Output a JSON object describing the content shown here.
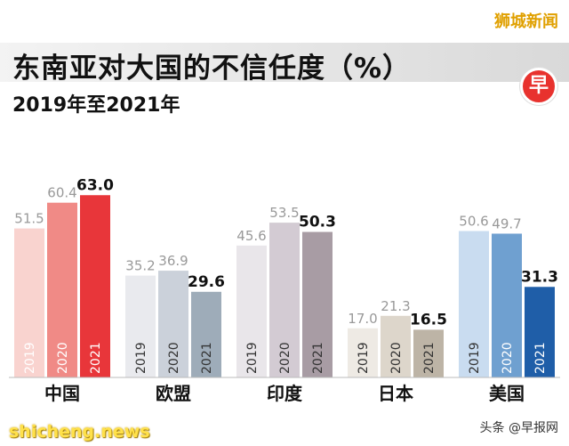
{
  "brand": "狮城新闻",
  "logo_char": "早",
  "footer_left": "shicheng.news",
  "footer_right": "头条 @早报网",
  "chart_data": {
    "type": "bar",
    "title": "东南亚对大国的不信任度（%）",
    "subtitle": "2019年至2021年",
    "xlabel": "",
    "ylabel": "",
    "ylim": [
      0,
      70
    ],
    "grid": false,
    "legend": "none",
    "categories": [
      "中国",
      "欧盟",
      "印度",
      "日本",
      "美国"
    ],
    "series": [
      {
        "name": "2019",
        "values": [
          51.5,
          35.2,
          45.6,
          17.0,
          50.6
        ]
      },
      {
        "name": "2020",
        "values": [
          60.4,
          36.9,
          53.5,
          21.3,
          49.7
        ]
      },
      {
        "name": "2021",
        "values": [
          63.0,
          29.6,
          50.3,
          16.5,
          31.3
        ]
      }
    ],
    "value_labels": [
      [
        "51.5",
        "60.4",
        "63.0"
      ],
      [
        "35.2",
        "36.9",
        "29.6"
      ],
      [
        "45.6",
        "53.5",
        "50.3"
      ],
      [
        "17.0",
        "21.3",
        "16.5"
      ],
      [
        "50.6",
        "49.7",
        "31.3"
      ]
    ],
    "colors": [
      [
        "#f9d3cf",
        "#f08a86",
        "#e8363a"
      ],
      [
        "#e9eaee",
        "#cbd1da",
        "#9eacb9"
      ],
      [
        "#e9e6ea",
        "#d3cbd3",
        "#a89ca4"
      ],
      [
        "#eeeae4",
        "#ddd6cb",
        "#bdb4a6"
      ],
      [
        "#c9dcf0",
        "#6fa0d0",
        "#1f5ea8"
      ]
    ]
  }
}
